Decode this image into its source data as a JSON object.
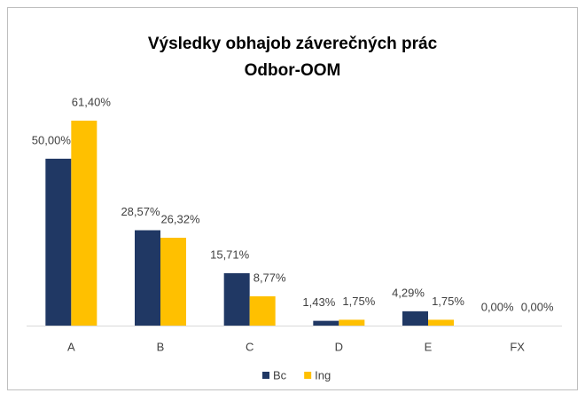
{
  "chart_data": {
    "type": "bar",
    "title": [
      "Výsledky obhajob záverečných prác",
      "Odbor-OOM"
    ],
    "categories": [
      "A",
      "B",
      "C",
      "D",
      "E",
      "FX"
    ],
    "series": [
      {
        "name": "Bc",
        "color": "#203864",
        "values": [
          50,
          28.57,
          15.71,
          1.43,
          4.29,
          0
        ],
        "value_labels": [
          "50,00%",
          "28,57%",
          "15,71%",
          "1,43%",
          "4,29%",
          "0,00%"
        ]
      },
      {
        "name": "Ing",
        "color": "#ffc000",
        "values": [
          61.4,
          26.32,
          8.77,
          1.75,
          1.75,
          0
        ],
        "value_labels": [
          "61,40%",
          "26,32%",
          "8,77%",
          "1,75%",
          "1,75%",
          "0,00%"
        ]
      }
    ],
    "legend": "bottom"
  }
}
